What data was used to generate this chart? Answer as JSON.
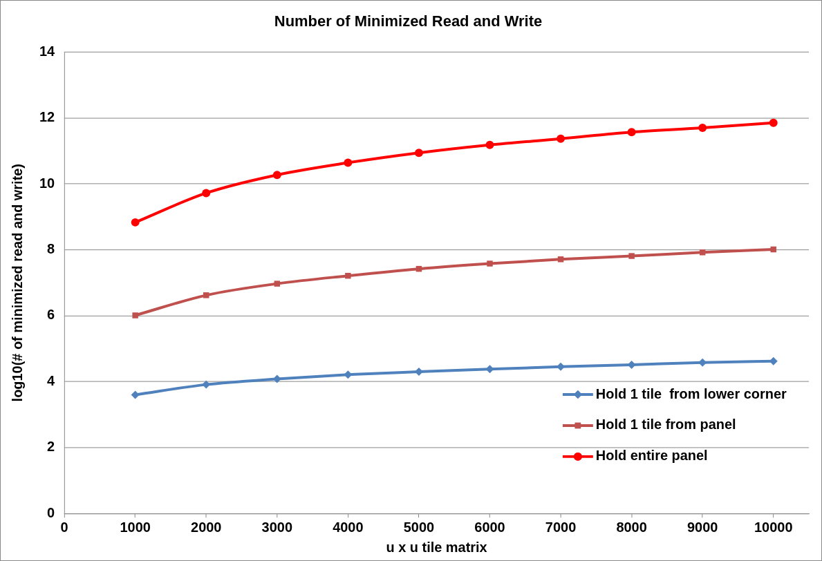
{
  "chart_data": {
    "type": "line",
    "title": "Number of Minimized Read and Write",
    "xlabel": "u x u tile matrix",
    "ylabel": "log10(# of minimized read and write)",
    "x": [
      1000,
      2000,
      3000,
      4000,
      5000,
      6000,
      7000,
      8000,
      9000,
      10000
    ],
    "series": [
      {
        "name": "Hold 1 tile  from lower corner",
        "color": "#4f81bd",
        "marker": "diamond",
        "values": [
          3.6,
          3.91,
          4.08,
          4.21,
          4.3,
          4.38,
          4.45,
          4.51,
          4.58,
          4.62
        ]
      },
      {
        "name": "Hold 1 tile from panel",
        "color": "#c0504d",
        "marker": "square",
        "values": [
          6.01,
          6.62,
          6.97,
          7.21,
          7.42,
          7.58,
          7.71,
          7.81,
          7.92,
          8.01
        ]
      },
      {
        "name": "Hold entire panel",
        "color": "#ff0000",
        "marker": "circle",
        "values": [
          8.83,
          9.72,
          10.27,
          10.64,
          10.94,
          11.18,
          11.37,
          11.57,
          11.7,
          11.85
        ]
      }
    ],
    "xlim": [
      0,
      10500
    ],
    "xticks": [
      0,
      1000,
      2000,
      3000,
      4000,
      5000,
      6000,
      7000,
      8000,
      9000,
      10000
    ],
    "ylim": [
      0,
      14
    ],
    "yticks": [
      0,
      2,
      4,
      6,
      8,
      10,
      12,
      14
    ],
    "grid": "y",
    "legend": "bottom right",
    "line_style": "solid"
  }
}
